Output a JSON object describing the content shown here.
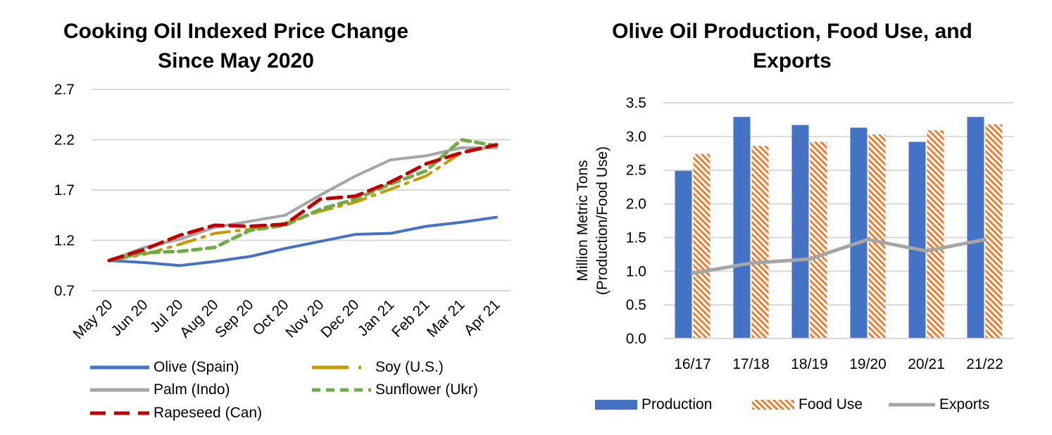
{
  "chart_data": [
    {
      "type": "line",
      "title_line1": "Cooking Oil Indexed Price Change",
      "title_line2": "Since May 2020",
      "xlabel": "",
      "ylabel": "",
      "categories": [
        "May 20",
        "Jun 20",
        "Jul 20",
        "Aug 20",
        "Sep 20",
        "Oct 20",
        "Nov 20",
        "Dec 20",
        "Jan 21",
        "Feb 21",
        "Mar 21",
        "Apr 21"
      ],
      "yticks": [
        "0.7",
        "1.2",
        "1.7",
        "2.2",
        "2.7"
      ],
      "ylim": [
        0.7,
        2.7
      ],
      "grid": true,
      "legend_position": "bottom",
      "series": [
        {
          "name": "Olive (Spain)",
          "color": "#4472C4",
          "style": "solid",
          "values": [
            1.0,
            0.98,
            0.95,
            0.99,
            1.04,
            1.12,
            1.19,
            1.26,
            1.27,
            1.34,
            1.38,
            1.43
          ]
        },
        {
          "name": "Soy (U.S.)",
          "color": "#C49A00",
          "style": "dashdot",
          "values": [
            1.0,
            1.06,
            1.16,
            1.27,
            1.31,
            1.37,
            1.49,
            1.58,
            1.71,
            1.84,
            2.07,
            2.14
          ]
        },
        {
          "name": "Palm (Indo)",
          "color": "#A5A5A5",
          "style": "solid",
          "values": [
            1.0,
            1.13,
            1.21,
            1.33,
            1.39,
            1.45,
            1.65,
            1.84,
            2.0,
            2.04,
            2.12,
            2.12
          ]
        },
        {
          "name": "Sunflower (Ukr)",
          "color": "#70AD47",
          "style": "dash",
          "values": [
            1.0,
            1.08,
            1.09,
            1.13,
            1.3,
            1.35,
            1.51,
            1.61,
            1.76,
            1.89,
            2.2,
            2.14
          ]
        },
        {
          "name": "Rapeseed (Can)",
          "color": "#C00000",
          "style": "longdash",
          "values": [
            1.0,
            1.11,
            1.25,
            1.35,
            1.34,
            1.36,
            1.61,
            1.64,
            1.78,
            1.96,
            2.07,
            2.15
          ]
        }
      ]
    },
    {
      "type": "bar",
      "title_line1": "Olive Oil Production, Food Use, and",
      "title_line2": "Exports",
      "ylabel_line1": "Million Metric Tons",
      "ylabel_line2": "(Production/Food Use)",
      "categories": [
        "16/17",
        "17/18",
        "18/19",
        "19/20",
        "20/21",
        "21/22"
      ],
      "yticks": [
        "0.0",
        "0.5",
        "1.0",
        "1.5",
        "2.0",
        "2.5",
        "3.0",
        "3.5"
      ],
      "ylim": [
        0,
        3.5
      ],
      "grid": true,
      "legend_position": "bottom",
      "series": [
        {
          "name": "Production",
          "kind": "bar",
          "color": "#4472C4",
          "values": [
            2.49,
            3.29,
            3.17,
            3.13,
            2.92,
            3.29
          ]
        },
        {
          "name": "Food Use",
          "kind": "bar-hatched",
          "color": "#ED7D31",
          "values": [
            2.74,
            2.86,
            2.92,
            3.03,
            3.09,
            3.18
          ]
        },
        {
          "name": "Exports",
          "kind": "line",
          "color": "#A5A5A5",
          "values": [
            0.97,
            1.12,
            1.18,
            1.47,
            1.3,
            1.47
          ]
        }
      ]
    }
  ]
}
